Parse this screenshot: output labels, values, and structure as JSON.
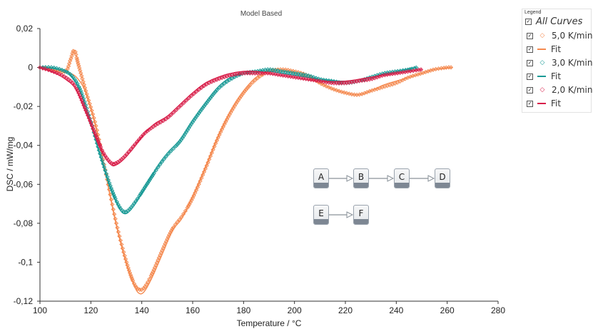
{
  "chart_data": {
    "type": "line",
    "title": "Model Based",
    "xlabel": "Temperature / °C",
    "ylabel": "DSC / mW/mg",
    "xlim": [
      100,
      280
    ],
    "ylim": [
      -0.12,
      0.02
    ],
    "x_ticks": [
      "100",
      "120",
      "140",
      "160",
      "180",
      "200",
      "220",
      "240",
      "260",
      "280"
    ],
    "y_ticks": [
      "0,02",
      "0",
      "-0,02",
      "-0,04",
      "-0,06",
      "-0,08",
      "-0,1",
      "-0,12"
    ],
    "grid": false,
    "legend_position": "top-right",
    "series": [
      {
        "name": "5,0 K/min",
        "kind": "measured",
        "marker": "diamond",
        "color": "#f4894f",
        "points": [
          [
            100,
            0.0
          ],
          [
            105,
            -0.001
          ],
          [
            110,
            -0.002
          ],
          [
            112,
            0.004
          ],
          [
            113.5,
            0.009
          ],
          [
            115,
            0.002
          ],
          [
            118,
            -0.012
          ],
          [
            122,
            -0.03
          ],
          [
            126,
            -0.055
          ],
          [
            130,
            -0.08
          ],
          [
            134,
            -0.1
          ],
          [
            137,
            -0.111
          ],
          [
            139,
            -0.114
          ],
          [
            141,
            -0.113
          ],
          [
            144,
            -0.106
          ],
          [
            148,
            -0.094
          ],
          [
            152,
            -0.083
          ],
          [
            156,
            -0.076
          ],
          [
            160,
            -0.067
          ],
          [
            165,
            -0.052
          ],
          [
            170,
            -0.036
          ],
          [
            175,
            -0.023
          ],
          [
            180,
            -0.013
          ],
          [
            185,
            -0.006
          ],
          [
            190,
            -0.002
          ],
          [
            195,
            -0.001
          ],
          [
            200,
            -0.002
          ],
          [
            205,
            -0.004
          ],
          [
            210,
            -0.008
          ],
          [
            215,
            -0.011
          ],
          [
            220,
            -0.013
          ],
          [
            225,
            -0.014
          ],
          [
            230,
            -0.012
          ],
          [
            235,
            -0.01
          ],
          [
            240,
            -0.008
          ],
          [
            245,
            -0.005
          ],
          [
            250,
            -0.003
          ],
          [
            255,
            -0.001
          ],
          [
            260,
            0.0
          ],
          [
            262,
            0.0
          ]
        ]
      },
      {
        "name": "Fit",
        "kind": "fit",
        "color": "#f4894f",
        "points": [
          [
            100,
            0.0
          ],
          [
            108,
            -0.002
          ],
          [
            112,
            -0.003
          ],
          [
            115,
            -0.006
          ],
          [
            118,
            -0.013
          ],
          [
            122,
            -0.031
          ],
          [
            126,
            -0.056
          ],
          [
            130,
            -0.081
          ],
          [
            134,
            -0.101
          ],
          [
            137,
            -0.112
          ],
          [
            139,
            -0.116
          ],
          [
            141,
            -0.115
          ],
          [
            144,
            -0.108
          ],
          [
            148,
            -0.096
          ],
          [
            152,
            -0.084
          ],
          [
            156,
            -0.077
          ],
          [
            160,
            -0.066
          ],
          [
            165,
            -0.051
          ],
          [
            170,
            -0.035
          ],
          [
            175,
            -0.022
          ],
          [
            180,
            -0.012
          ],
          [
            185,
            -0.005
          ],
          [
            190,
            -0.002
          ],
          [
            195,
            -0.002
          ],
          [
            200,
            -0.003
          ],
          [
            205,
            -0.005
          ],
          [
            210,
            -0.008
          ],
          [
            215,
            -0.011
          ],
          [
            220,
            -0.013
          ],
          [
            225,
            -0.014
          ],
          [
            230,
            -0.012
          ],
          [
            235,
            -0.009
          ],
          [
            240,
            -0.007
          ],
          [
            245,
            -0.005
          ],
          [
            250,
            -0.003
          ],
          [
            255,
            -0.001
          ],
          [
            262,
            0.0
          ]
        ]
      },
      {
        "name": "3,0 K/min",
        "kind": "measured",
        "marker": "diamond",
        "color": "#1a9a96",
        "points": [
          [
            100,
            0.0
          ],
          [
            105,
            0.0
          ],
          [
            110,
            -0.002
          ],
          [
            113,
            -0.005
          ],
          [
            116,
            -0.012
          ],
          [
            120,
            -0.028
          ],
          [
            124,
            -0.046
          ],
          [
            128,
            -0.062
          ],
          [
            131,
            -0.071
          ],
          [
            133,
            -0.074
          ],
          [
            135,
            -0.073
          ],
          [
            138,
            -0.068
          ],
          [
            142,
            -0.06
          ],
          [
            146,
            -0.052
          ],
          [
            150,
            -0.045
          ],
          [
            155,
            -0.038
          ],
          [
            160,
            -0.028
          ],
          [
            165,
            -0.019
          ],
          [
            170,
            -0.011
          ],
          [
            175,
            -0.006
          ],
          [
            180,
            -0.003
          ],
          [
            185,
            -0.002
          ],
          [
            190,
            -0.001
          ],
          [
            195,
            -0.002
          ],
          [
            200,
            -0.003
          ],
          [
            205,
            -0.004
          ],
          [
            210,
            -0.006
          ],
          [
            215,
            -0.007
          ],
          [
            220,
            -0.008
          ],
          [
            225,
            -0.007
          ],
          [
            230,
            -0.005
          ],
          [
            235,
            -0.003
          ],
          [
            240,
            -0.002
          ],
          [
            245,
            -0.001
          ],
          [
            248,
            0.0
          ]
        ]
      },
      {
        "name": "Fit",
        "kind": "fit",
        "color": "#1a9a96",
        "points": [
          [
            100,
            0.0
          ],
          [
            108,
            -0.001
          ],
          [
            112,
            -0.004
          ],
          [
            116,
            -0.013
          ],
          [
            120,
            -0.029
          ],
          [
            124,
            -0.047
          ],
          [
            128,
            -0.063
          ],
          [
            131,
            -0.072
          ],
          [
            133,
            -0.075
          ],
          [
            135,
            -0.074
          ],
          [
            138,
            -0.069
          ],
          [
            142,
            -0.06
          ],
          [
            146,
            -0.051
          ],
          [
            150,
            -0.044
          ],
          [
            155,
            -0.037
          ],
          [
            160,
            -0.027
          ],
          [
            165,
            -0.018
          ],
          [
            170,
            -0.01
          ],
          [
            175,
            -0.005
          ],
          [
            180,
            -0.003
          ],
          [
            185,
            -0.002
          ],
          [
            190,
            -0.002
          ],
          [
            195,
            -0.003
          ],
          [
            200,
            -0.004
          ],
          [
            210,
            -0.006
          ],
          [
            220,
            -0.007
          ],
          [
            230,
            -0.005
          ],
          [
            240,
            -0.002
          ],
          [
            248,
            0.0
          ]
        ]
      },
      {
        "name": "2,0 K/min",
        "kind": "measured",
        "marker": "diamond",
        "color": "#d81f4a",
        "points": [
          [
            100,
            0.0
          ],
          [
            105,
            -0.002
          ],
          [
            110,
            -0.005
          ],
          [
            114,
            -0.01
          ],
          [
            118,
            -0.022
          ],
          [
            122,
            -0.035
          ],
          [
            125,
            -0.044
          ],
          [
            128,
            -0.049
          ],
          [
            130,
            -0.049
          ],
          [
            133,
            -0.046
          ],
          [
            137,
            -0.04
          ],
          [
            141,
            -0.034
          ],
          [
            145,
            -0.03
          ],
          [
            150,
            -0.026
          ],
          [
            155,
            -0.02
          ],
          [
            160,
            -0.014
          ],
          [
            165,
            -0.009
          ],
          [
            170,
            -0.006
          ],
          [
            175,
            -0.004
          ],
          [
            180,
            -0.003
          ],
          [
            185,
            -0.003
          ],
          [
            190,
            -0.003
          ],
          [
            195,
            -0.004
          ],
          [
            200,
            -0.005
          ],
          [
            205,
            -0.006
          ],
          [
            210,
            -0.007
          ],
          [
            215,
            -0.008
          ],
          [
            220,
            -0.008
          ],
          [
            225,
            -0.007
          ],
          [
            230,
            -0.006
          ],
          [
            235,
            -0.004
          ],
          [
            240,
            -0.003
          ],
          [
            245,
            -0.002
          ],
          [
            250,
            -0.001
          ]
        ]
      },
      {
        "name": "Fit",
        "kind": "fit",
        "color": "#d81f4a",
        "points": [
          [
            100,
            0.0
          ],
          [
            106,
            -0.003
          ],
          [
            110,
            -0.006
          ],
          [
            114,
            -0.011
          ],
          [
            118,
            -0.023
          ],
          [
            122,
            -0.036
          ],
          [
            125,
            -0.045
          ],
          [
            128,
            -0.05
          ],
          [
            130,
            -0.05
          ],
          [
            133,
            -0.047
          ],
          [
            137,
            -0.041
          ],
          [
            141,
            -0.034
          ],
          [
            145,
            -0.029
          ],
          [
            150,
            -0.025
          ],
          [
            155,
            -0.019
          ],
          [
            160,
            -0.013
          ],
          [
            165,
            -0.008
          ],
          [
            170,
            -0.005
          ],
          [
            175,
            -0.003
          ],
          [
            180,
            -0.002
          ],
          [
            185,
            -0.002
          ],
          [
            190,
            -0.003
          ],
          [
            195,
            -0.004
          ],
          [
            200,
            -0.005
          ],
          [
            210,
            -0.007
          ],
          [
            220,
            -0.007
          ],
          [
            230,
            -0.005
          ],
          [
            240,
            -0.003
          ],
          [
            250,
            -0.001
          ]
        ]
      }
    ]
  },
  "legend": {
    "caption": "Legend",
    "all_curves": "All Curves",
    "check_mark": "✓",
    "marker_glyph": "◇",
    "items": [
      {
        "label": "5,0 K/min",
        "type": "marker",
        "color": "#f4894f"
      },
      {
        "label": "Fit",
        "type": "line",
        "color": "#f4894f"
      },
      {
        "label": "3,0 K/min",
        "type": "marker",
        "color": "#1a9a96"
      },
      {
        "label": "Fit",
        "type": "line",
        "color": "#1a9a96"
      },
      {
        "label": "2,0 K/min",
        "type": "marker",
        "color": "#d81f4a"
      },
      {
        "label": "Fit",
        "type": "line",
        "color": "#d81f4a"
      }
    ]
  },
  "model_scheme": {
    "nodes": [
      "A",
      "B",
      "C",
      "D",
      "E",
      "F"
    ],
    "steps": [
      [
        "A",
        "B"
      ],
      [
        "B",
        "C"
      ],
      [
        "C",
        "D"
      ],
      [
        "E",
        "F"
      ]
    ]
  }
}
